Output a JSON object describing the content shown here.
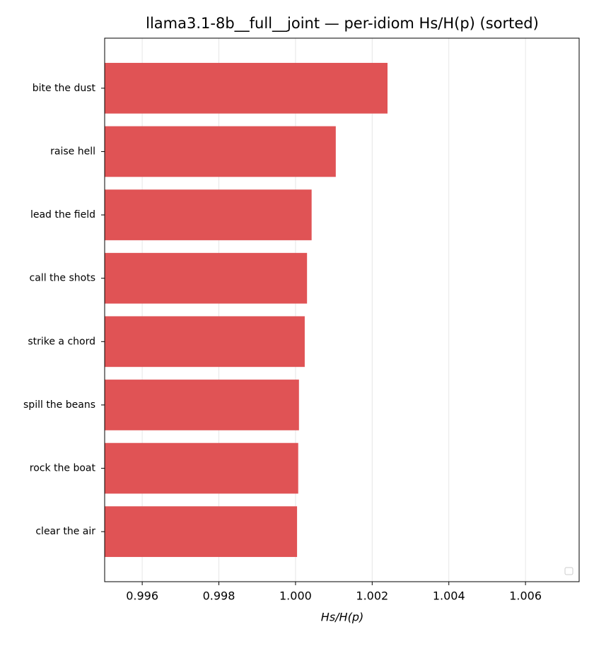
{
  "chart_data": {
    "type": "barh",
    "title": "llama3.1-8b__full__joint — per-idiom Hs/H(p) (sorted)",
    "x_label": "Hs/H(p)",
    "categories": [
      "bite the dust",
      "raise hell",
      "lead the field",
      "call the shots",
      "strike a chord",
      "spill the beans",
      "rock the boat",
      "clear the air"
    ],
    "values": [
      1.0024,
      1.00105,
      1.00042,
      1.0003,
      1.00024,
      1.00009,
      1.00007,
      1.00004
    ],
    "color": "#e05355",
    "xlim": [
      0.99502,
      1.0074
    ],
    "xticks": [
      0.996,
      0.998,
      {
        "value": 1,
        "label": "1.000"
      },
      1.002,
      1.004,
      1.006
    ],
    "grid": true
  }
}
